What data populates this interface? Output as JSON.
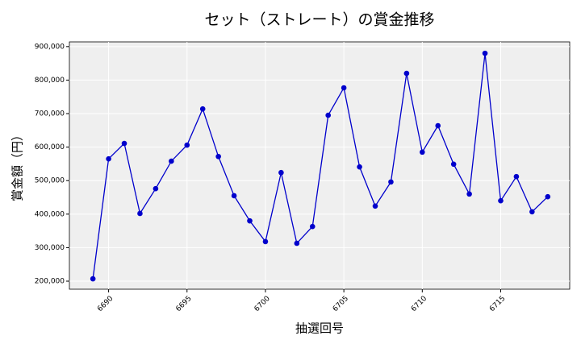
{
  "chart_data": {
    "type": "line",
    "title": "セット（ストレート）の賞金推移",
    "xlabel": "抽選回号",
    "ylabel": "賞金額（円）",
    "x": [
      6689,
      6690,
      6691,
      6692,
      6693,
      6694,
      6695,
      6696,
      6697,
      6698,
      6699,
      6700,
      6701,
      6702,
      6703,
      6704,
      6705,
      6706,
      6707,
      6708,
      6709,
      6710,
      6711,
      6712,
      6713,
      6714,
      6715,
      6716,
      6717,
      6718
    ],
    "values": [
      207000,
      565000,
      611000,
      402000,
      476000,
      558000,
      606000,
      714000,
      572000,
      455000,
      380000,
      318000,
      524000,
      313000,
      363000,
      695000,
      777000,
      541000,
      424000,
      496000,
      820000,
      585000,
      664000,
      549000,
      460000,
      880000,
      440000,
      512000,
      407000,
      452000
    ],
    "color": "#0000cc",
    "xlim": [
      6687.5,
      6719.4
    ],
    "ylim": [
      176000,
      914000
    ],
    "xticks": [
      6690,
      6695,
      6700,
      6705,
      6710,
      6715
    ],
    "yticks": [
      {
        "value": 200000,
        "label": "200,000"
      },
      {
        "value": 300000,
        "label": "300,000"
      },
      {
        "value": 400000,
        "label": "400,000"
      },
      {
        "value": 500000,
        "label": "500,000"
      },
      {
        "value": 600000,
        "label": "600,000"
      },
      {
        "value": 700000,
        "label": "700,000"
      },
      {
        "value": 800000,
        "label": "800,000"
      },
      {
        "value": 900000,
        "label": "900,000"
      }
    ],
    "grid": true
  }
}
